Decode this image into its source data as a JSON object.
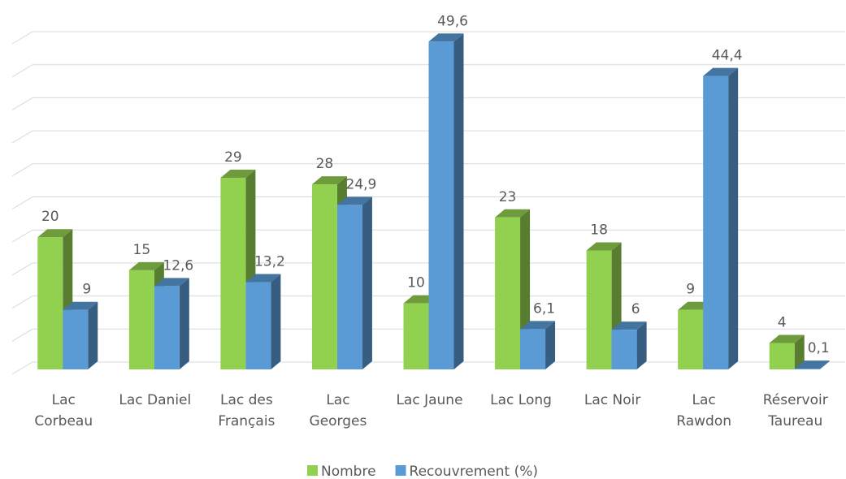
{
  "chart_data": {
    "type": "bar3d",
    "categories": [
      "Lac Corbeau",
      "Lac Daniel",
      "Lac des Français",
      "Lac Georges",
      "Lac Jaune",
      "Lac Long",
      "Lac Noir",
      "Lac Rawdon",
      "Réservoir Taureau"
    ],
    "series": [
      {
        "name": "Nombre",
        "color": "#92d050",
        "values": [
          20,
          15,
          29,
          28,
          10,
          23,
          18,
          9,
          4
        ]
      },
      {
        "name": "Recouvrement (%)",
        "color": "#5b9bd5",
        "values": [
          9,
          12.6,
          13.2,
          24.9,
          49.6,
          6.1,
          6,
          44.4,
          0.1
        ],
        "value_labels": [
          "9",
          "12,6",
          "13,2",
          "24,9",
          "49,6",
          "6,1",
          "6",
          "44,4",
          "0,1"
        ]
      }
    ],
    "ylim": [
      0,
      50
    ],
    "yticks": [
      0,
      5,
      10,
      15,
      20,
      25,
      30,
      35,
      40,
      45,
      50
    ],
    "grid": true,
    "legend": "bottom"
  }
}
